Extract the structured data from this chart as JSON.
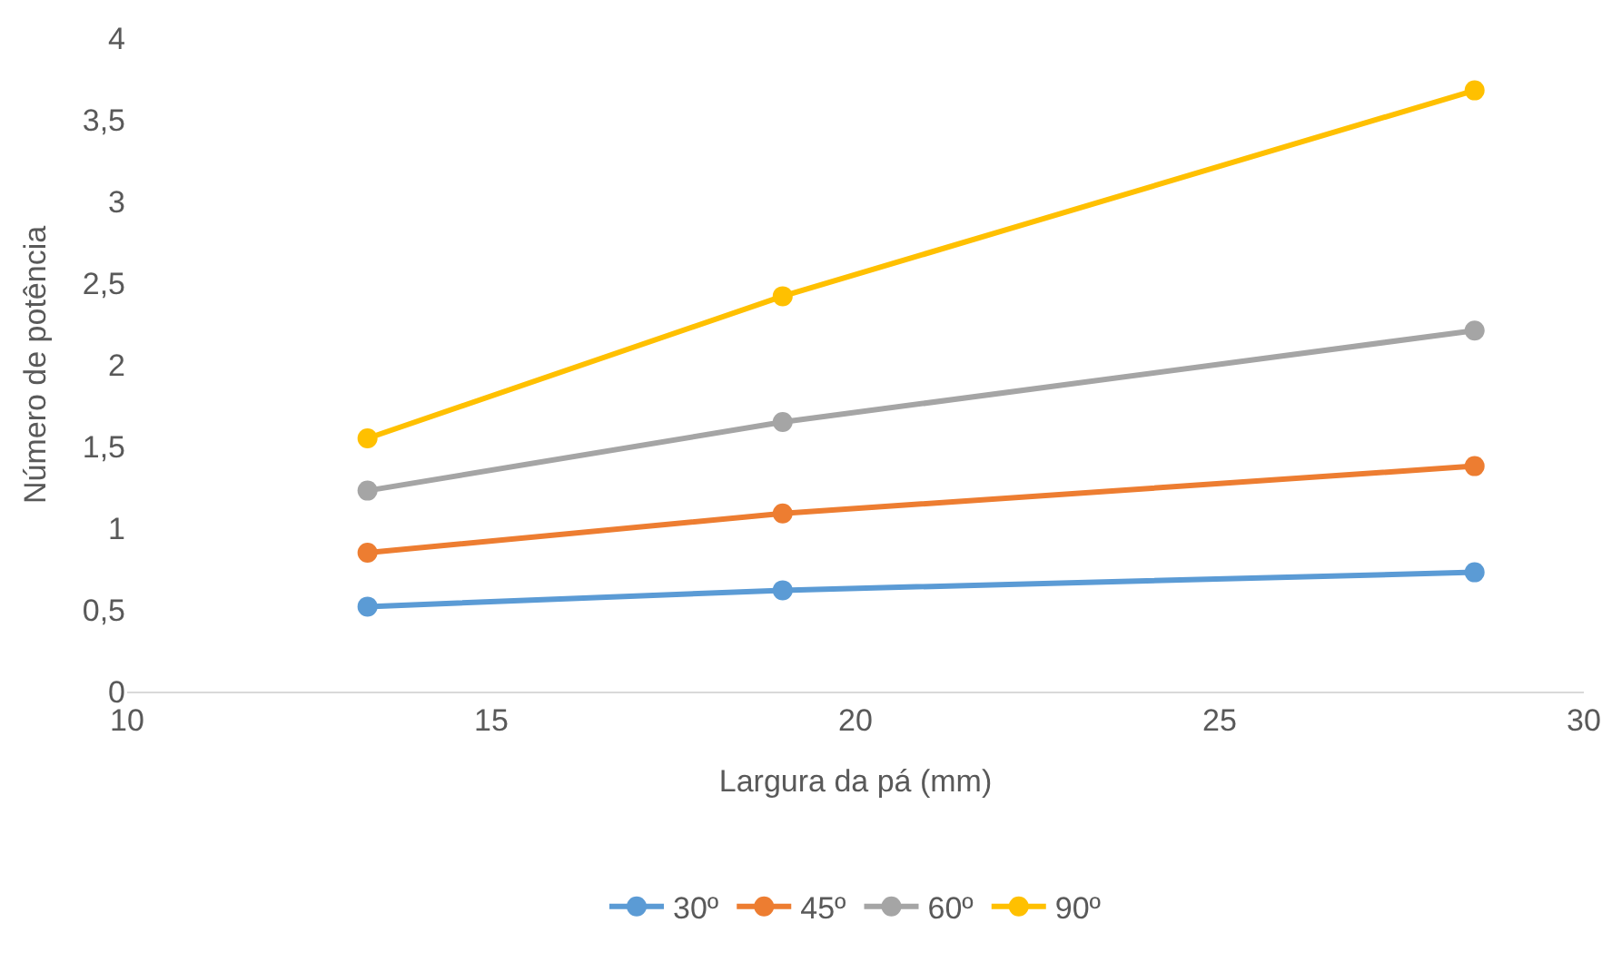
{
  "chart_data": {
    "type": "line",
    "xlabel": "Largura da pá (mm)",
    "ylabel": "Número de potência",
    "x": [
      13.3,
      19,
      28.5
    ],
    "series": [
      {
        "name": "30º",
        "color": "#5b9bd5",
        "values": [
          0.52,
          0.62,
          0.73
        ]
      },
      {
        "name": "45º",
        "color": "#ed7d31",
        "values": [
          0.85,
          1.09,
          1.38
        ]
      },
      {
        "name": "60º",
        "color": "#a5a5a5",
        "values": [
          1.23,
          1.65,
          2.21
        ]
      },
      {
        "name": "90º",
        "color": "#ffc000",
        "values": [
          1.55,
          2.42,
          3.68
        ]
      }
    ],
    "xlim": [
      10,
      30
    ],
    "xticks": [
      10,
      15,
      20,
      25,
      30
    ],
    "ylim": [
      0,
      4
    ],
    "yticks": [
      0,
      {
        "value": 0.5,
        "label": "0,5"
      },
      1,
      {
        "value": 1.5,
        "label": "1,5"
      },
      2,
      {
        "value": 2.5,
        "label": "2,5"
      },
      3,
      {
        "value": 3.5,
        "label": "3,5"
      },
      4
    ],
    "legend": "bottom",
    "marker": "circle",
    "line_style": "solid"
  }
}
